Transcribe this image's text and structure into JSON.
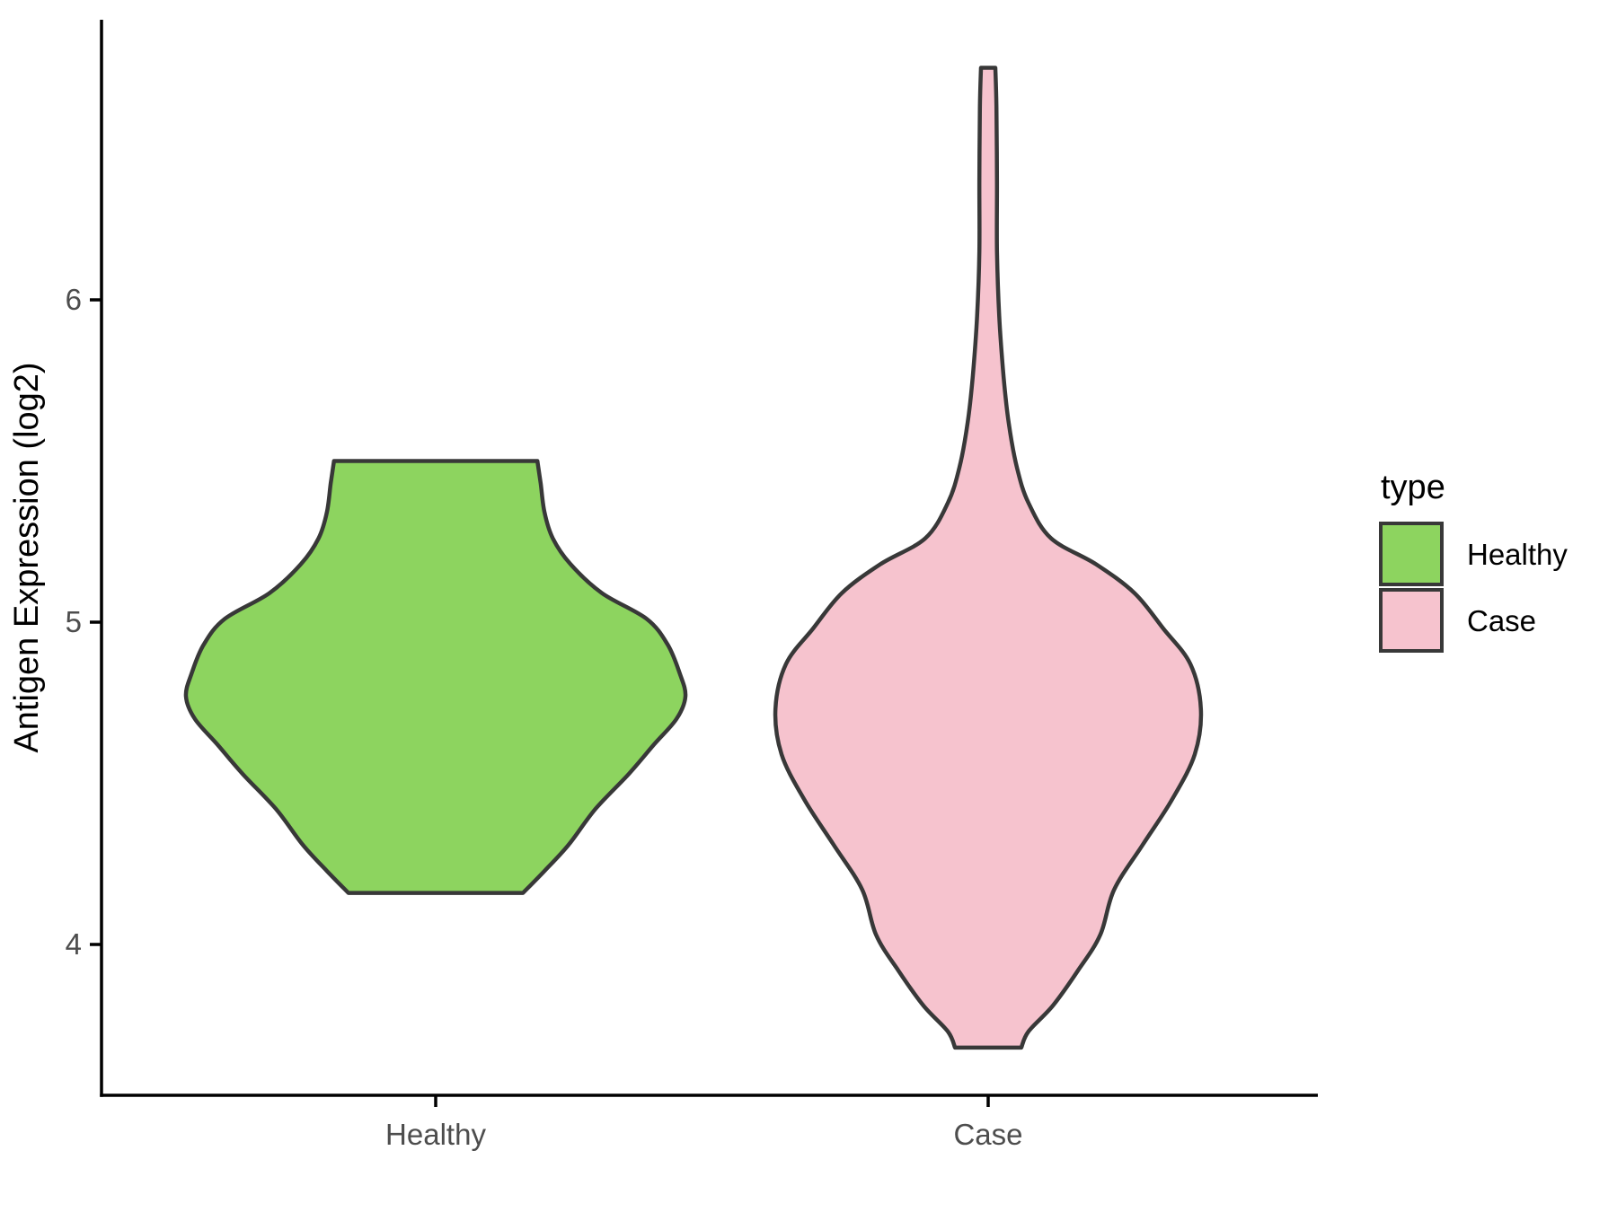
{
  "chart_data": {
    "type": "violin",
    "title": "",
    "xlabel": "",
    "ylabel": "Antigen Expression (log2)",
    "categories": [
      "Healthy",
      "Case"
    ],
    "y_ticks": [
      4,
      5,
      6
    ],
    "y_axis_range": [
      3.54,
      6.89
    ],
    "grid": "off",
    "legend": {
      "title": "type",
      "position": "right"
    },
    "style": {
      "outline_color": "#383838",
      "axis_color": "#000000",
      "tick_text_color": "#4D4D4D",
      "background": "#FFFFFF"
    },
    "series": [
      {
        "name": "Healthy",
        "fill": "#8DD45F",
        "y_min": 4.16,
        "y_max": 5.5,
        "violin_profile": [
          [
            5.5,
            0.184
          ],
          [
            5.43,
            0.19
          ],
          [
            5.34,
            0.197
          ],
          [
            5.26,
            0.212
          ],
          [
            5.18,
            0.244
          ],
          [
            5.09,
            0.301
          ],
          [
            5.01,
            0.382
          ],
          [
            4.93,
            0.42
          ],
          [
            4.84,
            0.442
          ],
          [
            4.77,
            0.452
          ],
          [
            4.7,
            0.436
          ],
          [
            4.62,
            0.395
          ],
          [
            4.53,
            0.35
          ],
          [
            4.42,
            0.289
          ],
          [
            4.31,
            0.241
          ],
          [
            4.23,
            0.198
          ],
          [
            4.16,
            0.158
          ]
        ]
      },
      {
        "name": "Case",
        "fill": "#F6C3CE",
        "y_min": 3.68,
        "y_max": 6.72,
        "violin_profile": [
          [
            6.72,
            0.013
          ],
          [
            6.6,
            0.015
          ],
          [
            6.37,
            0.016
          ],
          [
            6.15,
            0.016
          ],
          [
            5.95,
            0.02
          ],
          [
            5.76,
            0.028
          ],
          [
            5.62,
            0.037
          ],
          [
            5.48,
            0.052
          ],
          [
            5.37,
            0.073
          ],
          [
            5.26,
            0.114
          ],
          [
            5.18,
            0.195
          ],
          [
            5.09,
            0.265
          ],
          [
            4.98,
            0.317
          ],
          [
            4.87,
            0.366
          ],
          [
            4.73,
            0.385
          ],
          [
            4.59,
            0.374
          ],
          [
            4.45,
            0.333
          ],
          [
            4.31,
            0.28
          ],
          [
            4.17,
            0.228
          ],
          [
            4.03,
            0.203
          ],
          [
            3.92,
            0.163
          ],
          [
            3.81,
            0.117
          ],
          [
            3.73,
            0.073
          ],
          [
            3.68,
            0.06
          ]
        ]
      }
    ]
  }
}
